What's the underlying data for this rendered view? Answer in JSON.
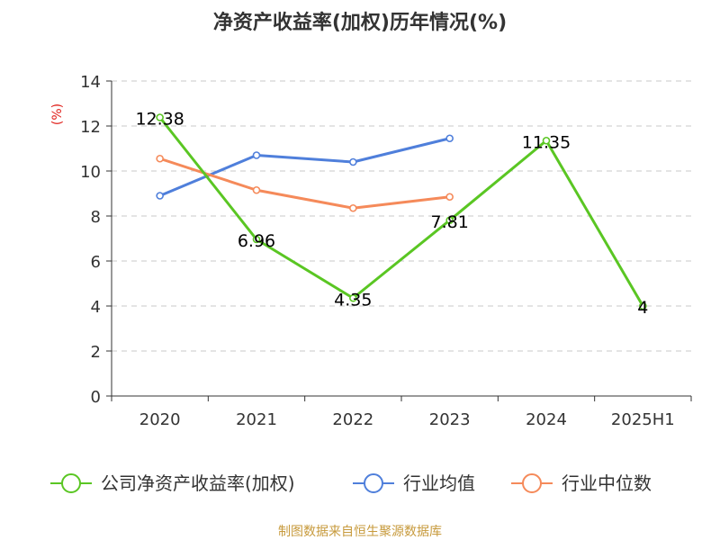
{
  "colors": {
    "company": "#5ac623",
    "industry_avg": "#4f7fdb",
    "industry_median": "#f58a5a",
    "grid": "#c8c8c8",
    "axis": "#333333",
    "unit": "#e0201b",
    "source": "#c79a3c"
  },
  "footer": {
    "source": "制图数据来自恒生聚源数据库"
  },
  "chart_data": {
    "type": "line",
    "title": "净资产收益率(加权)历年情况(%)",
    "ylabel": "(%)",
    "xlabel": "",
    "categories": [
      "2020",
      "2021",
      "2022",
      "2023",
      "2024",
      "2025H1"
    ],
    "ylim": [
      0,
      14
    ],
    "yticks": [
      0,
      2,
      4,
      6,
      8,
      10,
      12,
      14
    ],
    "grid": true,
    "legend_position": "bottom",
    "series": [
      {
        "name": "公司净资产收益率(加权)",
        "color_key": "company",
        "values": [
          12.38,
          6.96,
          4.35,
          7.81,
          11.35,
          4
        ],
        "labels": [
          "12.38",
          "6.96",
          "4.35",
          "7.81",
          "11.35",
          "4"
        ]
      },
      {
        "name": "行业均值",
        "color_key": "industry_avg",
        "values": [
          8.9,
          10.7,
          10.4,
          11.45,
          null,
          null
        ]
      },
      {
        "name": "行业中位数",
        "color_key": "industry_median",
        "values": [
          10.55,
          9.15,
          8.35,
          8.85,
          null,
          null
        ]
      }
    ]
  }
}
